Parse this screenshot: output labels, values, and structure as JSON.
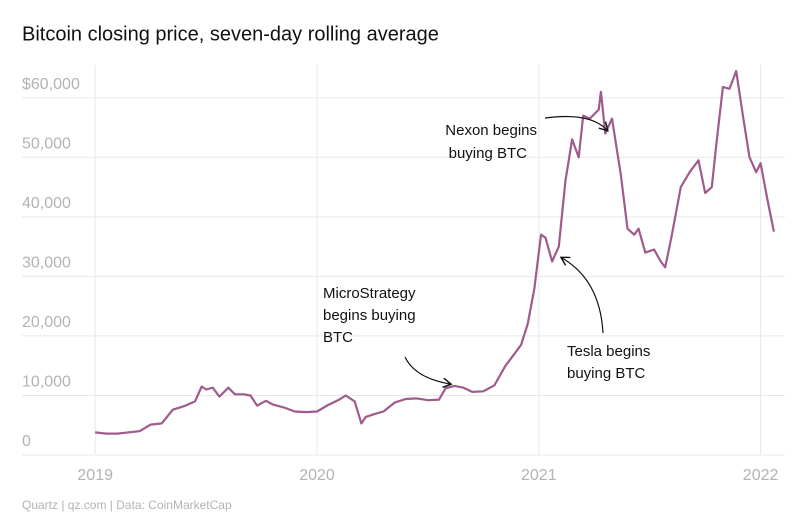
{
  "chart_data": {
    "type": "line",
    "title": "Bitcoin closing price, seven-day rolling average",
    "source": "Quartz | qz.com | Data: CoinMarketCap",
    "xlim": [
      2018.67,
      2022.11
    ],
    "xticks": [
      2019,
      2020,
      2021,
      2022
    ],
    "ylim": [
      0,
      65500
    ],
    "yticks": [
      0,
      {
        "value": 10000,
        "label": "10,000"
      },
      {
        "value": 20000,
        "label": "20,000"
      },
      {
        "value": 30000,
        "label": "30,000"
      },
      {
        "value": 40000,
        "label": "40,000"
      },
      {
        "value": 50000,
        "label": "50,000"
      },
      {
        "value": 60000,
        "label": "$60,000"
      }
    ],
    "grid": true,
    "x": [
      2019.0,
      2019.05,
      2019.1,
      2019.15,
      2019.2,
      2019.25,
      2019.3,
      2019.35,
      2019.4,
      2019.45,
      2019.48,
      2019.5,
      2019.53,
      2019.56,
      2019.6,
      2019.63,
      2019.67,
      2019.7,
      2019.73,
      2019.77,
      2019.8,
      2019.85,
      2019.9,
      2019.95,
      2020.0,
      2020.05,
      2020.1,
      2020.13,
      2020.17,
      2020.2,
      2020.22,
      2020.27,
      2020.3,
      2020.35,
      2020.4,
      2020.45,
      2020.5,
      2020.55,
      2020.58,
      2020.62,
      2020.66,
      2020.7,
      2020.75,
      2020.8,
      2020.85,
      2020.88,
      2020.92,
      2020.95,
      2020.98,
      2021.01,
      2021.03,
      2021.06,
      2021.09,
      2021.12,
      2021.15,
      2021.18,
      2021.2,
      2021.23,
      2021.27,
      2021.28,
      2021.3,
      2021.33,
      2021.37,
      2021.4,
      2021.43,
      2021.45,
      2021.48,
      2021.52,
      2021.55,
      2021.57,
      2021.6,
      2021.64,
      2021.68,
      2021.72,
      2021.75,
      2021.78,
      2021.8,
      2021.83,
      2021.86,
      2021.89,
      2021.92,
      2021.95,
      2021.98,
      2022.0,
      2022.03,
      2022.06
    ],
    "series": [
      {
        "name": "Bitcoin",
        "color": "#a05a8c",
        "values": [
          3800,
          3600,
          3600,
          3800,
          4000,
          5100,
          5300,
          7600,
          8200,
          9000,
          11500,
          11000,
          11300,
          9800,
          11300,
          10200,
          10200,
          10000,
          8300,
          9100,
          8500,
          8000,
          7300,
          7200,
          7300,
          8400,
          9300,
          10000,
          9000,
          5300,
          6400,
          7000,
          7300,
          8800,
          9400,
          9500,
          9200,
          9300,
          11200,
          11600,
          11300,
          10600,
          10700,
          11700,
          15000,
          16500,
          18500,
          22000,
          28000,
          37000,
          36500,
          32500,
          35000,
          46000,
          53000,
          50000,
          57000,
          56500,
          58000,
          61000,
          54000,
          56500,
          47000,
          38000,
          37000,
          38000,
          34000,
          34500,
          32500,
          31500,
          37000,
          45000,
          47500,
          49500,
          44000,
          45000,
          52000,
          61800,
          61500,
          64500,
          57000,
          50000,
          47500,
          49000,
          43000,
          37500
        ]
      }
    ],
    "annotations": [
      {
        "lines": [
          "Nexon begins",
          "buying BTC"
        ]
      },
      {
        "lines": [
          "MicroStrategy",
          "begins buying",
          "BTC"
        ]
      },
      {
        "lines": [
          "Tesla begins",
          "buying BTC"
        ]
      }
    ]
  }
}
